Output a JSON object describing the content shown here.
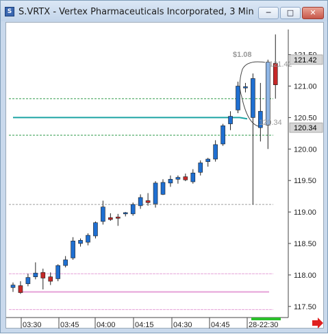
{
  "window": {
    "icon_letter": "S",
    "title": "S.VRTX - Vertex Pharmaceuticals Incorporated, 3 Min",
    "btn_min": "─",
    "btn_max": "□",
    "btn_close": "✕"
  },
  "colors": {
    "up": "#1f6fd1",
    "down": "#c62828",
    "selected": "#8fb6e6",
    "cyan": "#1ba3a3",
    "green": "#2e9a4a",
    "gray": "#9e9e9e",
    "pink": "#e5a0d8"
  },
  "chart_data": {
    "type": "candlestick",
    "ylim": [
      117.25,
      122.0
    ],
    "y_ticks": [
      "117.50",
      "118.00",
      "118.50",
      "119.00",
      "119.50",
      "120.00",
      "120.50",
      "121.00",
      "121.50"
    ],
    "x_ticks": [
      "03:30",
      "03:45",
      "04:00",
      "04:15",
      "04:30",
      "04:45",
      "28-22:30"
    ],
    "price_tags": [
      "121.42",
      "120.34"
    ],
    "annotations": {
      "dollar": "$1.08",
      "upper": "121.42",
      "lower": "120.34"
    },
    "lines": [
      {
        "name": "cyan",
        "y": 120.5
      },
      {
        "name": "green-upper",
        "y": 120.8
      },
      {
        "name": "green-lower",
        "y": 120.22
      },
      {
        "name": "gray",
        "y": 119.12
      },
      {
        "name": "pink-upper",
        "y": 118.02
      },
      {
        "name": "pink-lower",
        "y": 117.73
      },
      {
        "name": "pink-bottom",
        "y": 117.45
      }
    ],
    "candles": [
      {
        "o": 117.8,
        "h": 117.88,
        "l": 117.73,
        "c": 117.84
      },
      {
        "o": 117.83,
        "h": 117.9,
        "l": 117.7,
        "c": 117.72
      },
      {
        "o": 117.86,
        "h": 118.02,
        "l": 117.82,
        "c": 117.96
      },
      {
        "o": 117.97,
        "h": 118.2,
        "l": 117.93,
        "c": 118.03
      },
      {
        "o": 118.04,
        "h": 118.1,
        "l": 117.77,
        "c": 117.95
      },
      {
        "o": 117.97,
        "h": 118.04,
        "l": 117.84,
        "c": 117.9
      },
      {
        "o": 117.94,
        "h": 118.17,
        "l": 117.9,
        "c": 118.15
      },
      {
        "o": 118.15,
        "h": 118.3,
        "l": 118.12,
        "c": 118.24
      },
      {
        "o": 118.27,
        "h": 118.6,
        "l": 118.24,
        "c": 118.54
      },
      {
        "o": 118.5,
        "h": 118.58,
        "l": 118.45,
        "c": 118.55
      },
      {
        "o": 118.52,
        "h": 118.66,
        "l": 118.47,
        "c": 118.63
      },
      {
        "o": 118.62,
        "h": 118.85,
        "l": 118.58,
        "c": 118.83
      },
      {
        "o": 118.85,
        "h": 119.18,
        "l": 118.8,
        "c": 119.08
      },
      {
        "o": 118.91,
        "h": 118.98,
        "l": 118.86,
        "c": 118.88
      },
      {
        "o": 118.92,
        "h": 118.97,
        "l": 118.78,
        "c": 118.9
      },
      {
        "o": 118.97,
        "h": 119.0,
        "l": 118.93,
        "c": 118.99
      },
      {
        "o": 118.97,
        "h": 119.15,
        "l": 118.94,
        "c": 119.12
      },
      {
        "o": 119.1,
        "h": 119.28,
        "l": 119.05,
        "c": 119.23
      },
      {
        "o": 119.18,
        "h": 119.3,
        "l": 119.1,
        "c": 119.15
      },
      {
        "o": 119.13,
        "h": 119.49,
        "l": 119.07,
        "c": 119.46
      },
      {
        "o": 119.28,
        "h": 119.52,
        "l": 119.27,
        "c": 119.47
      },
      {
        "o": 119.46,
        "h": 119.58,
        "l": 119.4,
        "c": 119.52
      },
      {
        "o": 119.52,
        "h": 119.58,
        "l": 119.45,
        "c": 119.55
      },
      {
        "o": 119.56,
        "h": 119.61,
        "l": 119.49,
        "c": 119.51
      },
      {
        "o": 119.48,
        "h": 119.68,
        "l": 119.45,
        "c": 119.62
      },
      {
        "o": 119.63,
        "h": 119.82,
        "l": 119.58,
        "c": 119.78
      },
      {
        "o": 119.8,
        "h": 119.86,
        "l": 119.72,
        "c": 119.84
      },
      {
        "o": 119.84,
        "h": 120.14,
        "l": 119.8,
        "c": 120.07
      },
      {
        "o": 120.08,
        "h": 120.4,
        "l": 120.05,
        "c": 120.37
      },
      {
        "o": 120.4,
        "h": 120.6,
        "l": 120.3,
        "c": 120.52
      },
      {
        "o": 120.62,
        "h": 121.07,
        "l": 120.57,
        "c": 121.0
      },
      {
        "o": 120.97,
        "h": 121.05,
        "l": 120.9,
        "c": 120.99
      },
      {
        "o": 120.5,
        "h": 121.2,
        "l": 119.12,
        "c": 121.12
      },
      {
        "o": 120.34,
        "h": 121.05,
        "l": 120.12,
        "c": 120.6
      },
      {
        "o": 120.38,
        "h": 121.42,
        "l": 120.0,
        "c": 121.38
      },
      {
        "o": 121.36,
        "h": 121.82,
        "l": 120.8,
        "c": 121.02
      }
    ]
  }
}
